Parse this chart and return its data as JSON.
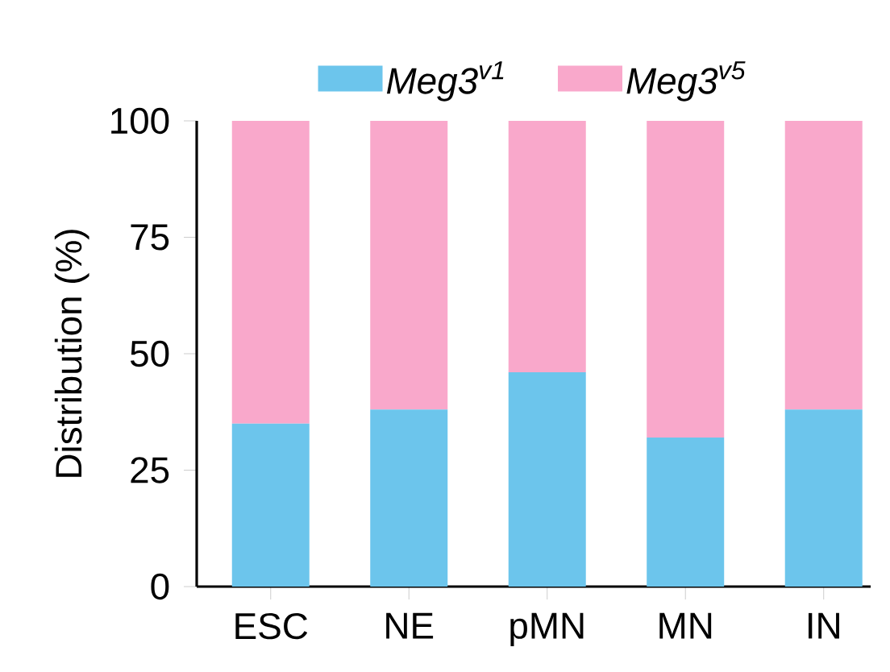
{
  "chart_data": {
    "type": "bar",
    "stacked": true,
    "ylabel": "Distribution (%)",
    "categories": [
      "ESC",
      "NE",
      "pMN",
      "MN",
      "IN"
    ],
    "series": [
      {
        "name": "Meg3$^{v1}$",
        "color": "#6cc5ec",
        "values": [
          35,
          38,
          46,
          32,
          38
        ]
      },
      {
        "name": "Meg3$^{v5}$",
        "color": "#f9a8cb",
        "values": [
          65,
          62,
          54,
          68,
          62
        ]
      }
    ],
    "ylim": [
      0,
      100
    ],
    "yticks": [
      0,
      25,
      50,
      75,
      100
    ],
    "grid": false,
    "legend": "top"
  }
}
